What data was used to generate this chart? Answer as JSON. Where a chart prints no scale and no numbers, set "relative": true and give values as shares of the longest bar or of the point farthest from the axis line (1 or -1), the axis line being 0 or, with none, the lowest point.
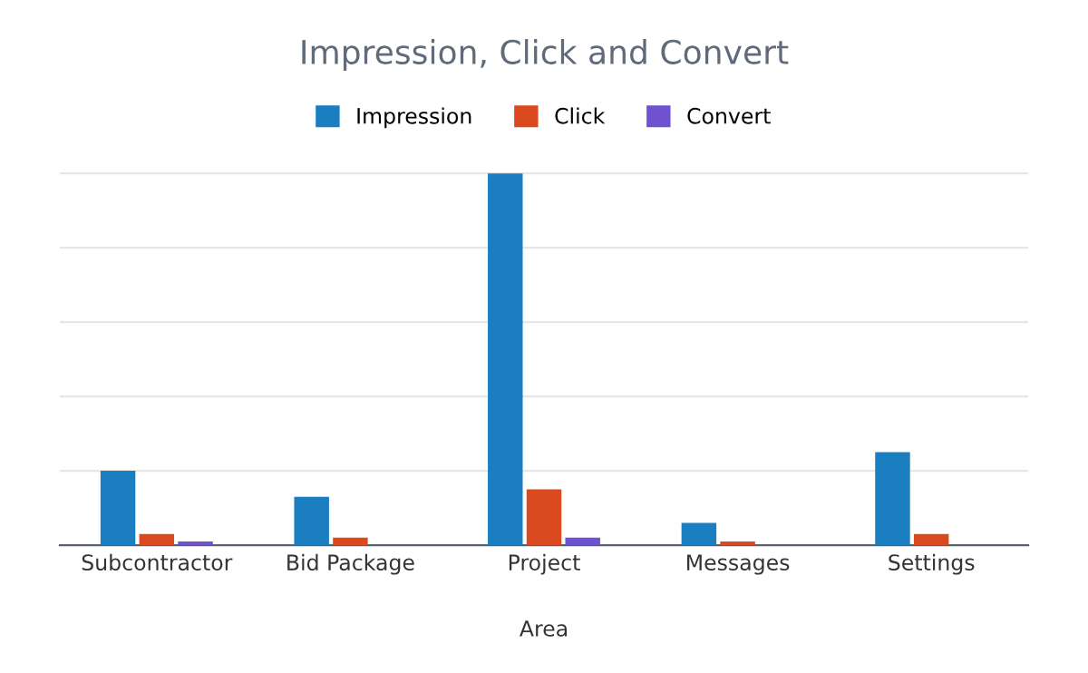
{
  "chart_data": {
    "type": "bar",
    "title": "Impression, Click and Convert",
    "xlabel": "Area",
    "relative": true,
    "grid": "y",
    "legend": "top",
    "categories": [
      "Subcontractor",
      "Bid Package",
      "Project",
      "Messages",
      "Settings"
    ],
    "series": [
      {
        "name": "Impression",
        "color": "#1a7ec0",
        "values": [
          0.2,
          0.13,
          1,
          0.06,
          0.25
        ]
      },
      {
        "name": "Click",
        "color": "#db4a1e",
        "values": [
          0.03,
          0.02,
          0.15,
          0.01,
          0.03
        ]
      },
      {
        "name": "Convert",
        "color": "#6e52d0",
        "values": [
          0.01,
          0,
          0.02,
          0,
          0
        ]
      }
    ]
  }
}
